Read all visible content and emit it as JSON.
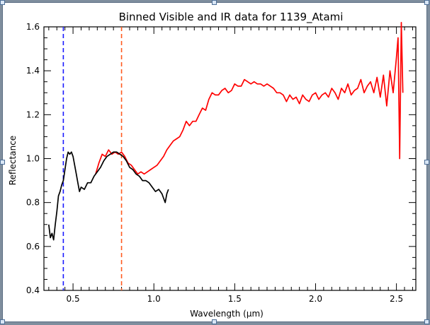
{
  "chart_data": {
    "type": "line",
    "title": "Binned Visible and IR data for 1139_Atami",
    "xlabel": "Wavelength (μm)",
    "ylabel": "Reflectance",
    "xlim": [
      0.32,
      2.62
    ],
    "ylim": [
      0.4,
      1.6
    ],
    "xticks": [
      0.5,
      1.0,
      1.5,
      2.0,
      2.5
    ],
    "xtick_labels": [
      "0.5",
      "1.0",
      "1.5",
      "2.0",
      "2.5"
    ],
    "yticks": [
      0.4,
      0.6,
      0.8,
      1.0,
      1.2,
      1.4,
      1.6
    ],
    "ytick_labels": [
      "0.4",
      "0.6",
      "0.8",
      "1.0",
      "1.2",
      "1.4",
      "1.6"
    ],
    "grid": false,
    "legend": "none",
    "vlines": [
      {
        "x": 0.44,
        "color": "#1a1aff",
        "style": "dashed"
      },
      {
        "x": 0.8,
        "color": "#ff5a1f",
        "style": "dashed"
      }
    ],
    "series": [
      {
        "color": "#000000",
        "x": [
          0.35,
          0.36,
          0.37,
          0.38,
          0.39,
          0.4,
          0.41,
          0.42,
          0.43,
          0.44,
          0.45,
          0.46,
          0.47,
          0.48,
          0.49,
          0.5,
          0.51,
          0.52,
          0.53,
          0.54,
          0.55,
          0.57,
          0.59,
          0.61,
          0.63,
          0.65,
          0.67,
          0.69,
          0.71,
          0.73,
          0.75,
          0.77,
          0.79,
          0.81,
          0.83,
          0.85,
          0.87,
          0.89,
          0.91,
          0.93,
          0.95,
          0.97,
          0.99,
          1.01,
          1.03,
          1.05,
          1.06,
          1.07,
          1.08,
          1.09
        ],
        "y": [
          0.7,
          0.64,
          0.66,
          0.63,
          0.7,
          0.76,
          0.83,
          0.85,
          0.88,
          0.9,
          0.95,
          1.0,
          1.03,
          1.02,
          1.03,
          1.01,
          0.97,
          0.93,
          0.89,
          0.85,
          0.87,
          0.86,
          0.89,
          0.89,
          0.92,
          0.94,
          0.96,
          0.99,
          1.01,
          1.02,
          1.03,
          1.03,
          1.02,
          1.01,
          0.99,
          0.96,
          0.95,
          0.93,
          0.92,
          0.9,
          0.9,
          0.89,
          0.87,
          0.85,
          0.86,
          0.84,
          0.82,
          0.8,
          0.84,
          0.86
        ]
      },
      {
        "color": "#ff0000",
        "x": [
          0.64,
          0.66,
          0.68,
          0.7,
          0.72,
          0.74,
          0.76,
          0.78,
          0.8,
          0.82,
          0.84,
          0.86,
          0.88,
          0.9,
          0.92,
          0.94,
          0.96,
          0.98,
          1.0,
          1.02,
          1.04,
          1.06,
          1.08,
          1.1,
          1.12,
          1.14,
          1.16,
          1.18,
          1.2,
          1.22,
          1.24,
          1.26,
          1.28,
          1.3,
          1.32,
          1.34,
          1.36,
          1.38,
          1.4,
          1.42,
          1.44,
          1.46,
          1.48,
          1.5,
          1.52,
          1.54,
          1.56,
          1.58,
          1.6,
          1.62,
          1.64,
          1.66,
          1.68,
          1.7,
          1.72,
          1.74,
          1.76,
          1.78,
          1.8,
          1.82,
          1.84,
          1.86,
          1.88,
          1.9,
          1.92,
          1.94,
          1.96,
          1.98,
          2.0,
          2.02,
          2.04,
          2.06,
          2.08,
          2.1,
          2.12,
          2.14,
          2.16,
          2.18,
          2.2,
          2.22,
          2.24,
          2.26,
          2.28,
          2.3,
          2.32,
          2.34,
          2.36,
          2.38,
          2.4,
          2.42,
          2.44,
          2.46,
          2.48,
          2.5,
          2.51,
          2.52,
          2.53,
          2.54
        ],
        "y": [
          0.93,
          0.98,
          1.02,
          1.01,
          1.04,
          1.02,
          1.03,
          1.02,
          1.03,
          1.01,
          0.98,
          0.97,
          0.95,
          0.93,
          0.94,
          0.93,
          0.94,
          0.95,
          0.96,
          0.97,
          0.99,
          1.01,
          1.04,
          1.06,
          1.08,
          1.09,
          1.1,
          1.13,
          1.17,
          1.15,
          1.17,
          1.17,
          1.2,
          1.23,
          1.22,
          1.27,
          1.3,
          1.29,
          1.29,
          1.31,
          1.32,
          1.3,
          1.31,
          1.34,
          1.33,
          1.33,
          1.36,
          1.35,
          1.34,
          1.35,
          1.34,
          1.34,
          1.33,
          1.34,
          1.33,
          1.32,
          1.3,
          1.3,
          1.29,
          1.26,
          1.29,
          1.27,
          1.28,
          1.25,
          1.29,
          1.27,
          1.26,
          1.29,
          1.3,
          1.27,
          1.29,
          1.3,
          1.28,
          1.32,
          1.3,
          1.27,
          1.32,
          1.3,
          1.34,
          1.29,
          1.31,
          1.32,
          1.36,
          1.3,
          1.33,
          1.35,
          1.3,
          1.37,
          1.28,
          1.38,
          1.24,
          1.4,
          1.3,
          1.46,
          1.55,
          1.0,
          1.62,
          1.3
        ]
      }
    ]
  }
}
